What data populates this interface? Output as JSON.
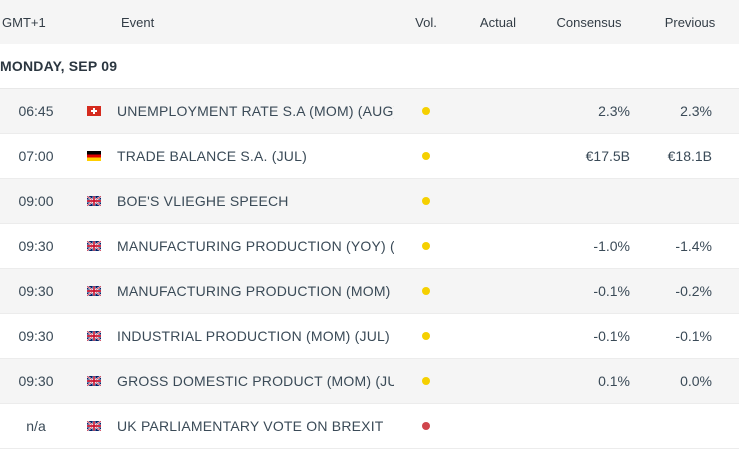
{
  "header": {
    "timezone": "GMT+1",
    "event": "Event",
    "volatility": "Vol.",
    "actual": "Actual",
    "consensus": "Consensus",
    "previous": "Previous"
  },
  "day": {
    "label": "MONDAY, SEP 09"
  },
  "colors": {
    "vol_medium": "#f5d000",
    "vol_high": "#d0454c",
    "shade": "#f5f5f5"
  },
  "events": [
    {
      "time": "06:45",
      "flag": "ch-flag-icon",
      "event": "UNEMPLOYMENT RATE S.A (MOM) (AUG)",
      "vol": "medium",
      "actual": "",
      "consensus": "2.3%",
      "previous": "2.3%"
    },
    {
      "time": "07:00",
      "flag": "de-flag-icon",
      "event": "TRADE BALANCE S.A. (JUL)",
      "vol": "medium",
      "actual": "",
      "consensus": "€17.5B",
      "previous": "€18.1B"
    },
    {
      "time": "09:00",
      "flag": "gb-flag-icon",
      "event": "BOE'S VLIEGHE SPEECH",
      "vol": "medium",
      "actual": "",
      "consensus": "",
      "previous": ""
    },
    {
      "time": "09:30",
      "flag": "gb-flag-icon",
      "event": "MANUFACTURING PRODUCTION (YOY) (J...",
      "vol": "medium",
      "actual": "",
      "consensus": "-1.0%",
      "previous": "-1.4%"
    },
    {
      "time": "09:30",
      "flag": "gb-flag-icon",
      "event": "MANUFACTURING PRODUCTION (MOM) (J...",
      "vol": "medium",
      "actual": "",
      "consensus": "-0.1%",
      "previous": "-0.2%"
    },
    {
      "time": "09:30",
      "flag": "gb-flag-icon",
      "event": "INDUSTRIAL PRODUCTION (MOM) (JUL)",
      "vol": "medium",
      "actual": "",
      "consensus": "-0.1%",
      "previous": "-0.1%"
    },
    {
      "time": "09:30",
      "flag": "gb-flag-icon",
      "event": "GROSS DOMESTIC PRODUCT (MOM) (JUL)",
      "vol": "medium",
      "actual": "",
      "consensus": "0.1%",
      "previous": "0.0%"
    },
    {
      "time": "n/a",
      "flag": "gb-flag-icon",
      "event": "UK PARLIAMENTARY VOTE ON BREXIT",
      "vol": "high",
      "actual": "",
      "consensus": "",
      "previous": ""
    }
  ]
}
